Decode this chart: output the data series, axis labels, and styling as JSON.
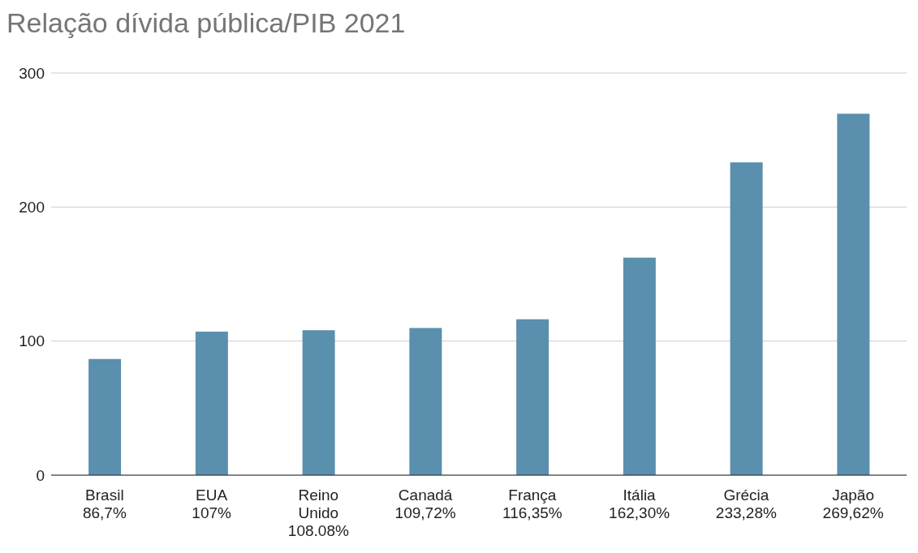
{
  "chart_data": {
    "type": "bar",
    "title": "Relação dívida pública/PIB 2021",
    "categories": [
      "Brasil\n86,7%",
      "EUA\n107%",
      "Reino\nUnido\n108.08%",
      "Canadá\n109,72%",
      "França\n116,35%",
      "Itália\n162,30%",
      "Grécia\n233,28%",
      "Japão\n269,62%"
    ],
    "values": [
      86.7,
      107,
      108.08,
      109.72,
      116.35,
      162.3,
      233.28,
      269.62
    ],
    "color": "#5a8fae",
    "ylim": [
      0,
      300
    ],
    "yticks": [
      0,
      100,
      200,
      300
    ],
    "grid": "y"
  }
}
